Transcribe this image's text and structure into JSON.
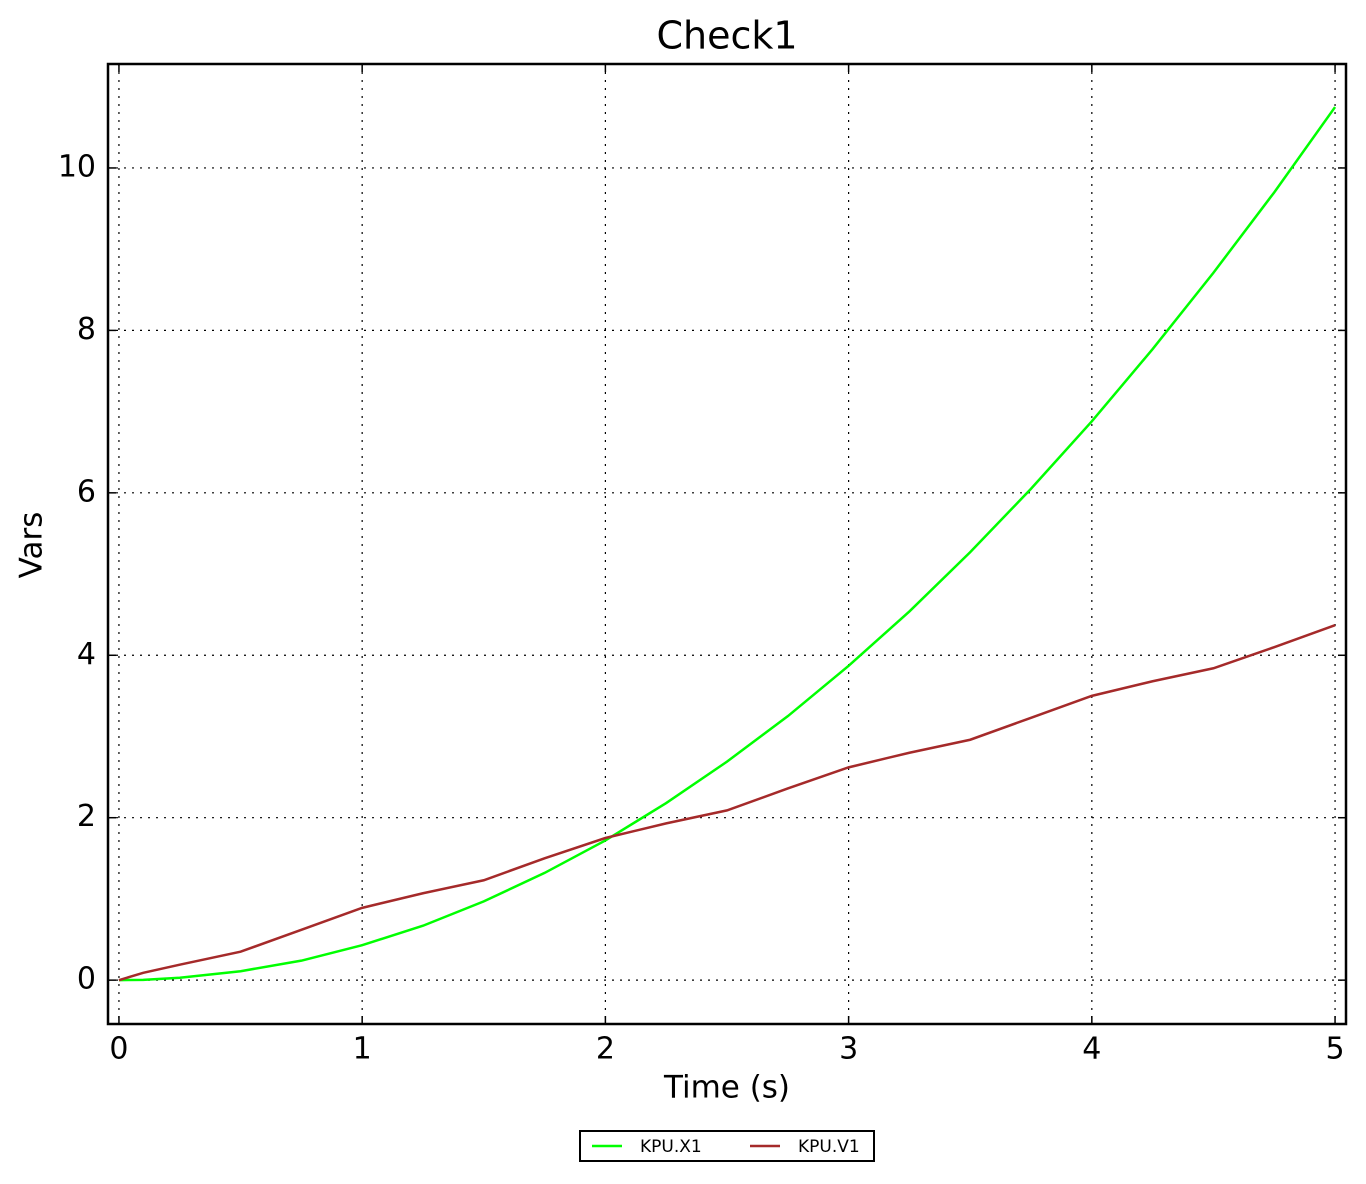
{
  "chart_data": {
    "type": "line",
    "title": "Check1",
    "x_label": "Time (s)",
    "y_label": "Vars",
    "x": [
      0,
      0.1,
      0.25,
      0.5,
      0.75,
      1,
      1.25,
      1.5,
      1.75,
      2,
      2.25,
      2.5,
      2.75,
      3,
      3.25,
      3.5,
      3.75,
      4,
      4.25,
      4.5,
      4.75,
      5
    ],
    "series": [
      {
        "name": "KPU.X1",
        "color": "#00ff00",
        "values": [
          0,
          0.004,
          0.03,
          0.11,
          0.24,
          0.43,
          0.67,
          0.97,
          1.32,
          1.72,
          2.18,
          2.69,
          3.25,
          3.87,
          4.54,
          5.27,
          6.05,
          6.88,
          7.77,
          8.71,
          9.7,
          10.75
        ]
      },
      {
        "name": "KPU.V1",
        "color": "#a52a2a",
        "values": [
          0,
          0.09,
          0.19,
          0.35,
          0.62,
          0.89,
          1.07,
          1.23,
          1.5,
          1.75,
          1.93,
          2.09,
          2.36,
          2.62,
          2.8,
          2.96,
          3.23,
          3.5,
          3.68,
          3.84,
          4.1,
          4.37
        ]
      }
    ],
    "xlim": [
      -0.045,
      5.045
    ],
    "ylim": [
      -0.54,
      11.28
    ],
    "xticks": [
      0,
      1,
      2,
      3,
      4,
      5
    ],
    "yticks": [
      0,
      2,
      4,
      6,
      8,
      10
    ],
    "grid": true,
    "legend": "below"
  }
}
